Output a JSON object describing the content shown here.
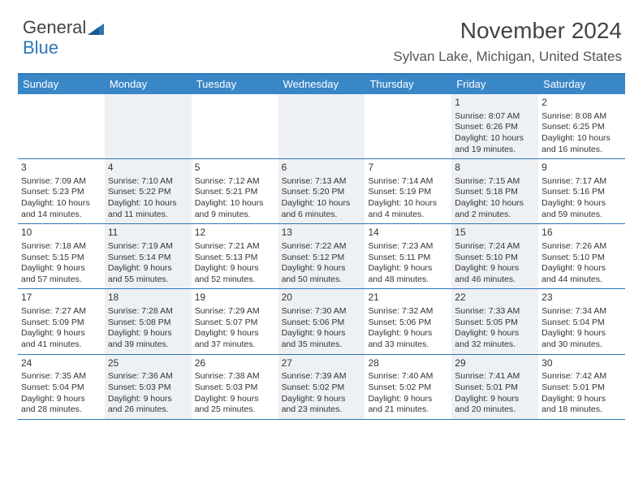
{
  "logo": {
    "line1": "General",
    "line2": "Blue"
  },
  "header": {
    "month_title": "November 2024",
    "location": "Sylvan Lake, Michigan, United States"
  },
  "weekdays": [
    "Sunday",
    "Monday",
    "Tuesday",
    "Wednesday",
    "Thursday",
    "Friday",
    "Saturday"
  ],
  "colors": {
    "header_bg": "#3a87c8",
    "border": "#2c77b8",
    "alt_bg": "#eef1f4"
  },
  "weeks": [
    [
      {
        "blank": true
      },
      {
        "blank": true
      },
      {
        "blank": true
      },
      {
        "blank": true
      },
      {
        "blank": true
      },
      {
        "n": "1",
        "sr": "Sunrise: 8:07 AM",
        "ss": "Sunset: 6:26 PM",
        "dl": "Daylight: 10 hours and 19 minutes."
      },
      {
        "n": "2",
        "sr": "Sunrise: 8:08 AM",
        "ss": "Sunset: 6:25 PM",
        "dl": "Daylight: 10 hours and 16 minutes."
      }
    ],
    [
      {
        "n": "3",
        "sr": "Sunrise: 7:09 AM",
        "ss": "Sunset: 5:23 PM",
        "dl": "Daylight: 10 hours and 14 minutes."
      },
      {
        "n": "4",
        "sr": "Sunrise: 7:10 AM",
        "ss": "Sunset: 5:22 PM",
        "dl": "Daylight: 10 hours and 11 minutes."
      },
      {
        "n": "5",
        "sr": "Sunrise: 7:12 AM",
        "ss": "Sunset: 5:21 PM",
        "dl": "Daylight: 10 hours and 9 minutes."
      },
      {
        "n": "6",
        "sr": "Sunrise: 7:13 AM",
        "ss": "Sunset: 5:20 PM",
        "dl": "Daylight: 10 hours and 6 minutes."
      },
      {
        "n": "7",
        "sr": "Sunrise: 7:14 AM",
        "ss": "Sunset: 5:19 PM",
        "dl": "Daylight: 10 hours and 4 minutes."
      },
      {
        "n": "8",
        "sr": "Sunrise: 7:15 AM",
        "ss": "Sunset: 5:18 PM",
        "dl": "Daylight: 10 hours and 2 minutes."
      },
      {
        "n": "9",
        "sr": "Sunrise: 7:17 AM",
        "ss": "Sunset: 5:16 PM",
        "dl": "Daylight: 9 hours and 59 minutes."
      }
    ],
    [
      {
        "n": "10",
        "sr": "Sunrise: 7:18 AM",
        "ss": "Sunset: 5:15 PM",
        "dl": "Daylight: 9 hours and 57 minutes."
      },
      {
        "n": "11",
        "sr": "Sunrise: 7:19 AM",
        "ss": "Sunset: 5:14 PM",
        "dl": "Daylight: 9 hours and 55 minutes."
      },
      {
        "n": "12",
        "sr": "Sunrise: 7:21 AM",
        "ss": "Sunset: 5:13 PM",
        "dl": "Daylight: 9 hours and 52 minutes."
      },
      {
        "n": "13",
        "sr": "Sunrise: 7:22 AM",
        "ss": "Sunset: 5:12 PM",
        "dl": "Daylight: 9 hours and 50 minutes."
      },
      {
        "n": "14",
        "sr": "Sunrise: 7:23 AM",
        "ss": "Sunset: 5:11 PM",
        "dl": "Daylight: 9 hours and 48 minutes."
      },
      {
        "n": "15",
        "sr": "Sunrise: 7:24 AM",
        "ss": "Sunset: 5:10 PM",
        "dl": "Daylight: 9 hours and 46 minutes."
      },
      {
        "n": "16",
        "sr": "Sunrise: 7:26 AM",
        "ss": "Sunset: 5:10 PM",
        "dl": "Daylight: 9 hours and 44 minutes."
      }
    ],
    [
      {
        "n": "17",
        "sr": "Sunrise: 7:27 AM",
        "ss": "Sunset: 5:09 PM",
        "dl": "Daylight: 9 hours and 41 minutes."
      },
      {
        "n": "18",
        "sr": "Sunrise: 7:28 AM",
        "ss": "Sunset: 5:08 PM",
        "dl": "Daylight: 9 hours and 39 minutes."
      },
      {
        "n": "19",
        "sr": "Sunrise: 7:29 AM",
        "ss": "Sunset: 5:07 PM",
        "dl": "Daylight: 9 hours and 37 minutes."
      },
      {
        "n": "20",
        "sr": "Sunrise: 7:30 AM",
        "ss": "Sunset: 5:06 PM",
        "dl": "Daylight: 9 hours and 35 minutes."
      },
      {
        "n": "21",
        "sr": "Sunrise: 7:32 AM",
        "ss": "Sunset: 5:06 PM",
        "dl": "Daylight: 9 hours and 33 minutes."
      },
      {
        "n": "22",
        "sr": "Sunrise: 7:33 AM",
        "ss": "Sunset: 5:05 PM",
        "dl": "Daylight: 9 hours and 32 minutes."
      },
      {
        "n": "23",
        "sr": "Sunrise: 7:34 AM",
        "ss": "Sunset: 5:04 PM",
        "dl": "Daylight: 9 hours and 30 minutes."
      }
    ],
    [
      {
        "n": "24",
        "sr": "Sunrise: 7:35 AM",
        "ss": "Sunset: 5:04 PM",
        "dl": "Daylight: 9 hours and 28 minutes."
      },
      {
        "n": "25",
        "sr": "Sunrise: 7:36 AM",
        "ss": "Sunset: 5:03 PM",
        "dl": "Daylight: 9 hours and 26 minutes."
      },
      {
        "n": "26",
        "sr": "Sunrise: 7:38 AM",
        "ss": "Sunset: 5:03 PM",
        "dl": "Daylight: 9 hours and 25 minutes."
      },
      {
        "n": "27",
        "sr": "Sunrise: 7:39 AM",
        "ss": "Sunset: 5:02 PM",
        "dl": "Daylight: 9 hours and 23 minutes."
      },
      {
        "n": "28",
        "sr": "Sunrise: 7:40 AM",
        "ss": "Sunset: 5:02 PM",
        "dl": "Daylight: 9 hours and 21 minutes."
      },
      {
        "n": "29",
        "sr": "Sunrise: 7:41 AM",
        "ss": "Sunset: 5:01 PM",
        "dl": "Daylight: 9 hours and 20 minutes."
      },
      {
        "n": "30",
        "sr": "Sunrise: 7:42 AM",
        "ss": "Sunset: 5:01 PM",
        "dl": "Daylight: 9 hours and 18 minutes."
      }
    ]
  ]
}
